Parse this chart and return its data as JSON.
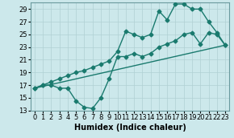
{
  "xlabel": "Humidex (Indice chaleur)",
  "bg_color": "#cce8eb",
  "grid_color": "#b0d0d4",
  "line_color": "#1a7a6e",
  "ylim": [
    13,
    30
  ],
  "xlim": [
    -0.5,
    23.5
  ],
  "yticks": [
    13,
    15,
    17,
    19,
    21,
    23,
    25,
    27,
    29
  ],
  "xticks": [
    0,
    1,
    2,
    3,
    4,
    5,
    6,
    7,
    8,
    9,
    10,
    11,
    12,
    13,
    14,
    15,
    16,
    17,
    18,
    19,
    20,
    21,
    22,
    23
  ],
  "line1_x": [
    0,
    1,
    2,
    3,
    4,
    5,
    6,
    7,
    8,
    9,
    10,
    11,
    12,
    13,
    14,
    15,
    16,
    17,
    18,
    19,
    20,
    21,
    22,
    23
  ],
  "line1_y": [
    16.5,
    17.0,
    17.0,
    16.5,
    16.5,
    14.5,
    13.5,
    13.3,
    15.0,
    18.0,
    21.5,
    21.5,
    22.0,
    21.5,
    22.0,
    23.0,
    23.5,
    24.0,
    25.0,
    25.3,
    23.5,
    25.3,
    25.0,
    23.3
  ],
  "line2_x": [
    0,
    1,
    2,
    3,
    4,
    5,
    6,
    7,
    8,
    9,
    10,
    11,
    12,
    13,
    14,
    15,
    16,
    17,
    18,
    19,
    20,
    21,
    22,
    23
  ],
  "line2_y": [
    16.5,
    17.0,
    17.5,
    18.0,
    18.5,
    19.0,
    19.3,
    19.8,
    20.3,
    20.8,
    22.3,
    25.5,
    25.0,
    24.5,
    25.0,
    28.7,
    27.3,
    29.8,
    29.8,
    29.0,
    29.0,
    27.0,
    25.3,
    23.3
  ],
  "line3_x": [
    0,
    23
  ],
  "line3_y": [
    16.5,
    23.3
  ],
  "marker": "D",
  "marker_size": 2.5,
  "line_width": 1.0,
  "xlabel_fontsize": 7,
  "tick_fontsize": 6
}
